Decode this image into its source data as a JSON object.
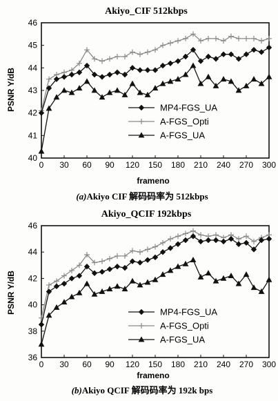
{
  "figure": {
    "panels": [
      {
        "title": "Akiyo_CIF 512kbps",
        "ylabel": "PSNR Y/dB",
        "xlabel": "frameno",
        "caption_prefix": "(a)",
        "caption_text": "Akiyo CIF 解码码率为 512kbps"
      },
      {
        "title": "Akiyo_QCIF 192kbps",
        "ylabel": "PSNR Y/dB",
        "xlabel": "frameno",
        "caption_prefix": "(b)",
        "caption_text": "Akiyo QCIF 解码码率为 192k bps"
      }
    ]
  },
  "chart_data": [
    {
      "type": "line",
      "title": "Akiyo_CIF 512kbps",
      "xlabel": "frameno",
      "ylabel": "PSNR Y/dB",
      "xlim": [
        0,
        300
      ],
      "ylim": [
        40,
        46
      ],
      "xticks": [
        0,
        30,
        60,
        90,
        120,
        150,
        180,
        210,
        240,
        270,
        300
      ],
      "yticks": [
        40,
        41,
        42,
        43,
        44,
        45,
        46
      ],
      "grid": false,
      "legend_position": "lower-right",
      "x": [
        0,
        10,
        20,
        30,
        40,
        50,
        60,
        70,
        80,
        90,
        100,
        110,
        120,
        130,
        140,
        150,
        160,
        170,
        180,
        190,
        200,
        210,
        220,
        230,
        240,
        250,
        260,
        270,
        280,
        290,
        300
      ],
      "series": [
        {
          "name": "MP4-FGS_UA",
          "marker": "diamond",
          "color": "#111111",
          "values": [
            42.0,
            43.1,
            43.5,
            43.6,
            43.7,
            43.8,
            44.1,
            43.7,
            43.6,
            43.7,
            43.8,
            43.7,
            44.0,
            43.9,
            43.9,
            43.9,
            44.1,
            44.2,
            44.3,
            44.5,
            44.8,
            44.3,
            44.5,
            44.4,
            44.6,
            44.6,
            44.4,
            44.6,
            44.8,
            44.7,
            44.9
          ]
        },
        {
          "name": "A-FGS_Opti",
          "marker": "plus",
          "color": "#8a8a8a",
          "values": [
            42.1,
            43.5,
            43.7,
            43.8,
            43.9,
            44.2,
            44.8,
            44.4,
            44.3,
            44.4,
            44.5,
            44.5,
            44.7,
            44.6,
            44.7,
            44.8,
            45.0,
            45.1,
            45.2,
            45.3,
            45.5,
            45.2,
            45.3,
            45.3,
            45.2,
            45.4,
            45.3,
            45.3,
            45.3,
            45.2,
            45.3
          ]
        },
        {
          "name": "A-FGS_UA",
          "marker": "triangle",
          "color": "#111111",
          "values": [
            40.3,
            42.2,
            42.7,
            43.0,
            42.9,
            43.1,
            43.4,
            43.0,
            42.7,
            42.9,
            43.0,
            42.8,
            43.3,
            42.9,
            42.8,
            43.1,
            43.3,
            43.4,
            43.5,
            43.7,
            44.1,
            43.3,
            43.6,
            43.2,
            43.5,
            43.4,
            43.0,
            43.2,
            43.5,
            43.3,
            43.6
          ]
        }
      ]
    },
    {
      "type": "line",
      "title": "Akiyo_QCIF 192kbps",
      "xlabel": "frameno",
      "ylabel": "PSNR Y/dB",
      "xlim": [
        0,
        300
      ],
      "ylim": [
        36,
        46
      ],
      "xticks": [
        0,
        30,
        60,
        90,
        120,
        150,
        180,
        210,
        240,
        270,
        300
      ],
      "yticks": [
        36,
        38,
        40,
        42,
        44,
        46
      ],
      "grid": false,
      "legend_position": "lower-right",
      "x": [
        0,
        10,
        20,
        30,
        40,
        50,
        60,
        70,
        80,
        90,
        100,
        110,
        120,
        130,
        140,
        150,
        160,
        170,
        180,
        190,
        200,
        210,
        220,
        230,
        240,
        250,
        260,
        270,
        280,
        290,
        300
      ],
      "series": [
        {
          "name": "MP4-FGS_UA",
          "marker": "diamond",
          "color": "#111111",
          "values": [
            38.5,
            41.0,
            41.4,
            41.6,
            42.0,
            42.2,
            42.9,
            42.4,
            42.5,
            42.7,
            42.9,
            42.8,
            43.3,
            43.2,
            43.4,
            43.6,
            44.0,
            44.3,
            44.6,
            44.9,
            45.2,
            44.8,
            44.9,
            44.9,
            44.8,
            45.0,
            44.6,
            44.7,
            44.2,
            44.9,
            45.0
          ]
        },
        {
          "name": "A-FGS_Opti",
          "marker": "plus",
          "color": "#8a8a8a",
          "values": [
            39.0,
            41.5,
            41.8,
            42.2,
            42.6,
            43.0,
            43.8,
            43.2,
            43.3,
            43.5,
            43.7,
            43.7,
            44.1,
            44.0,
            44.2,
            44.4,
            44.7,
            45.0,
            45.2,
            45.4,
            45.6,
            45.3,
            45.2,
            45.3,
            45.1,
            45.3,
            45.0,
            45.2,
            44.8,
            45.1,
            45.3
          ]
        },
        {
          "name": "A-FGS_UA",
          "marker": "triangle",
          "color": "#111111",
          "values": [
            37.0,
            39.2,
            39.8,
            40.2,
            40.6,
            40.9,
            41.6,
            40.8,
            41.0,
            41.2,
            41.4,
            41.2,
            41.8,
            41.5,
            41.7,
            41.9,
            42.3,
            42.6,
            42.9,
            43.1,
            43.4,
            42.1,
            42.4,
            41.8,
            42.0,
            42.2,
            41.6,
            42.3,
            41.3,
            41.0,
            41.9
          ]
        }
      ]
    }
  ]
}
